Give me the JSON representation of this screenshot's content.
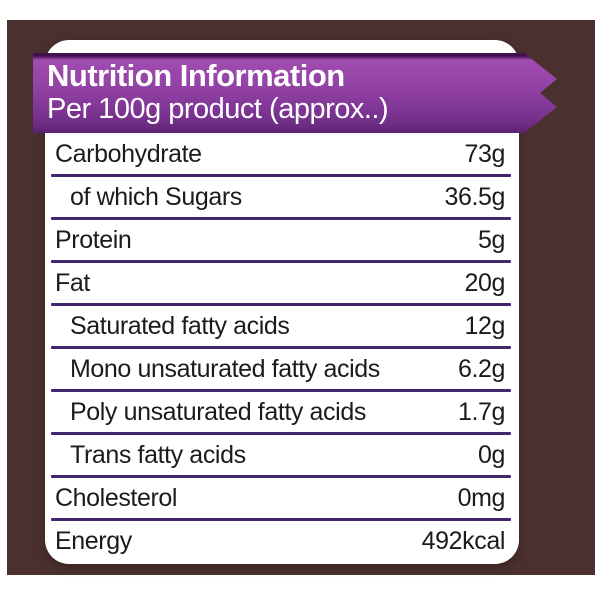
{
  "ribbon": {
    "title": "Nutrition Information",
    "subtitle": "Per 100g product (approx..)"
  },
  "table": {
    "rows": [
      {
        "label": "Carbohydrate",
        "value": "73g",
        "indent": false
      },
      {
        "label": "of which Sugars",
        "value": "36.5g",
        "indent": true
      },
      {
        "label": "Protein",
        "value": "5g",
        "indent": false
      },
      {
        "label": "Fat",
        "value": "20g",
        "indent": false
      },
      {
        "label": "Saturated fatty acids",
        "value": "12g",
        "indent": true
      },
      {
        "label": "Mono unsaturated fatty acids",
        "value": "6.2g",
        "indent": true
      },
      {
        "label": "Poly unsaturated fatty acids",
        "value": "1.7g",
        "indent": true
      },
      {
        "label": "Trans fatty acids",
        "value": "0g",
        "indent": true
      },
      {
        "label": "Cholesterol",
        "value": "0mg",
        "indent": false
      },
      {
        "label": "Energy",
        "value": "492kcal",
        "indent": false
      }
    ]
  },
  "colors": {
    "background_brown": "#4a3130",
    "ribbon_purple_light": "#a14cb0",
    "ribbon_purple_dark": "#5a2170",
    "separator_purple": "#44266e",
    "text": "#1d1b1a",
    "card": "#ffffff"
  }
}
